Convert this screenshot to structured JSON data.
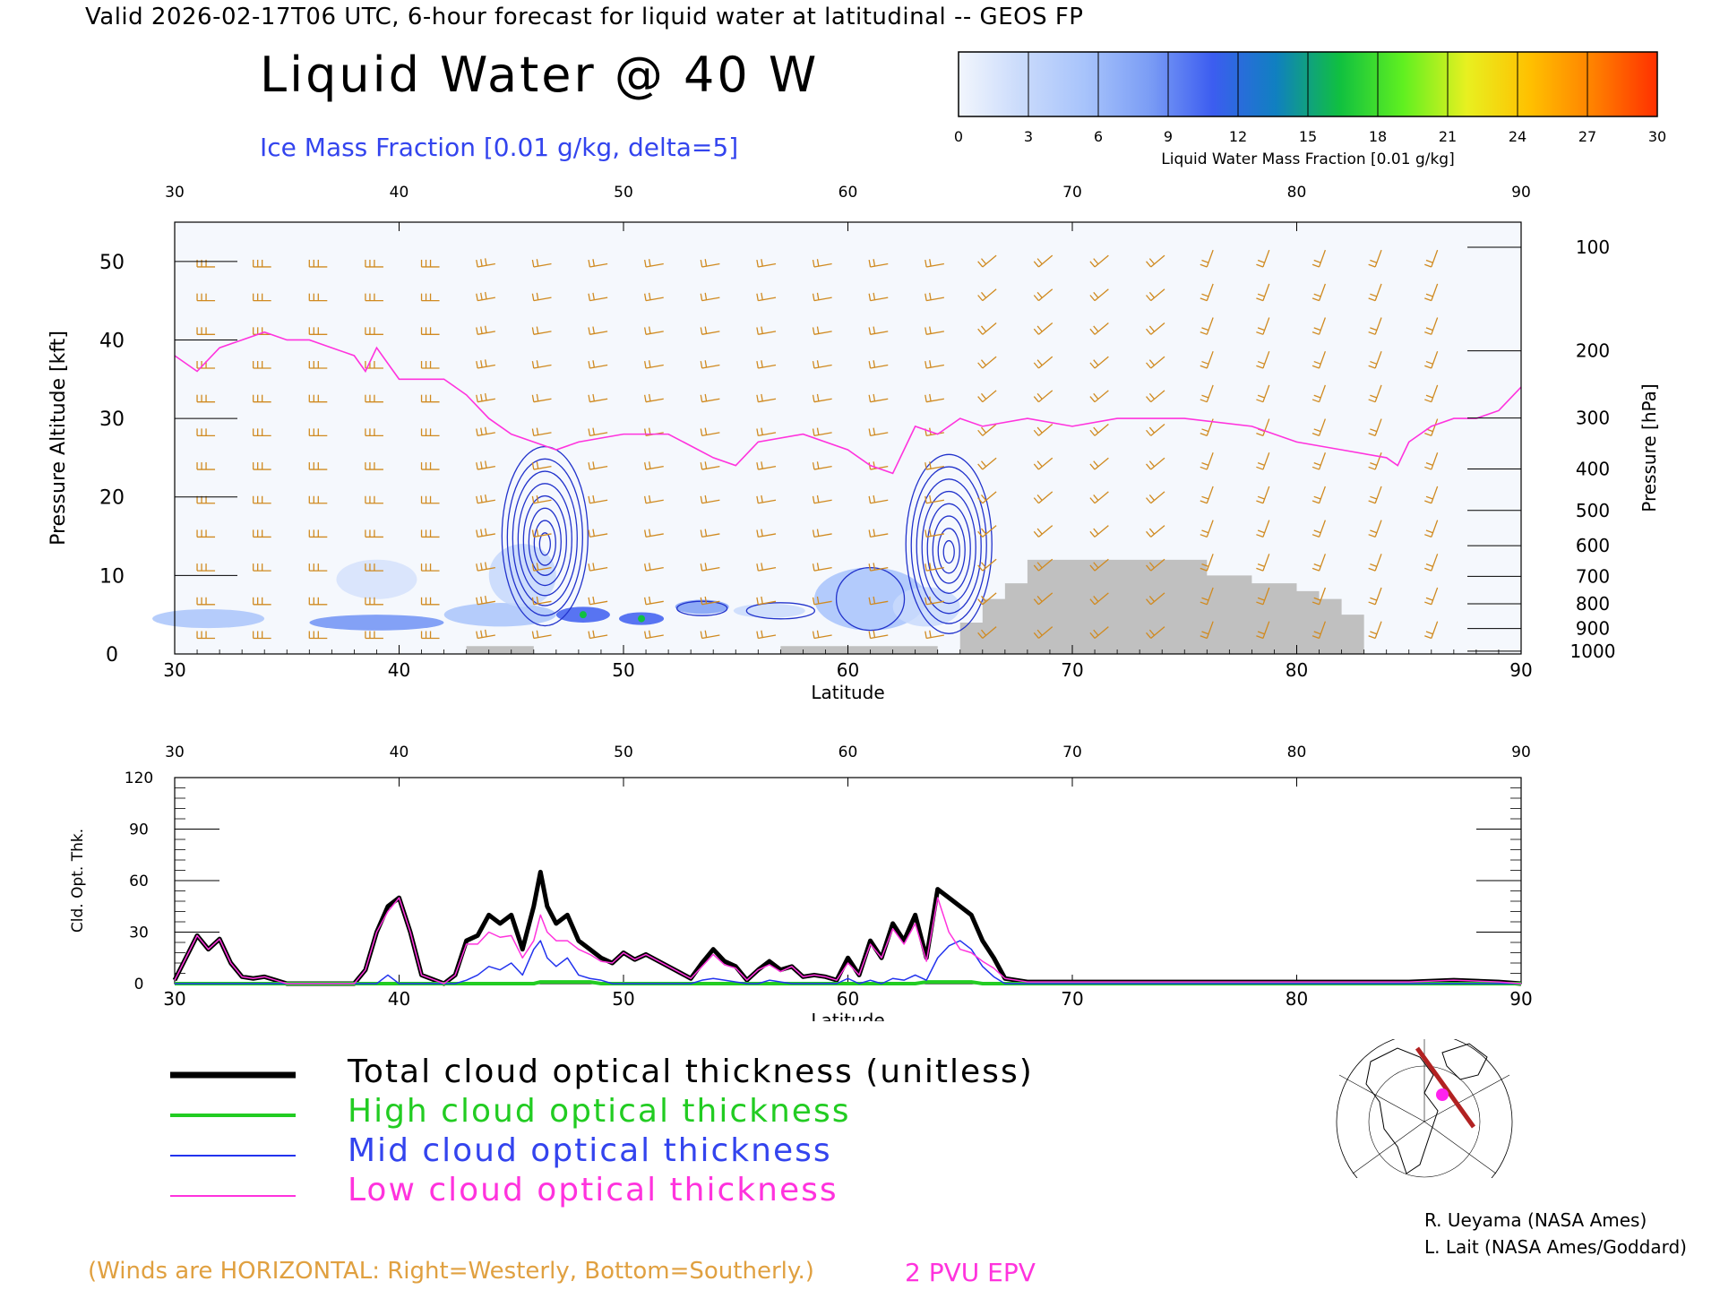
{
  "header": "Valid 2026-02-17T06 UTC, 6-hour forecast for liquid water at latitudinal -- GEOS FP",
  "title": "Liquid Water @ 40 W",
  "subtitle": "Ice Mass Fraction [0.01 g/kg, delta=5]",
  "colorbar": {
    "label": "Liquid Water Mass Fraction [0.01 g/kg]",
    "ticks": [
      "0",
      "3",
      "6",
      "9",
      "12",
      "15",
      "18",
      "21",
      "24",
      "27",
      "30"
    ],
    "colors": [
      "#f2f6fd",
      "#c9dafb",
      "#a7c3fb",
      "#7b9df5",
      "#3c5df0",
      "#1080c0",
      "#10c040",
      "#60f020",
      "#e8f020",
      "#ffc000",
      "#ff8000",
      "#ff3000"
    ]
  },
  "colors": {
    "wind_barb": "#d08a20",
    "epv": "#ff33dd",
    "ice_contour": "#2233cc",
    "ground": "#c0c0c0",
    "total": "#000000",
    "high": "#22cc22",
    "mid": "#2233ee",
    "low": "#ff33dd"
  },
  "top_panel": {
    "x_axis_label": "Latitude",
    "y_left_label": "Pressure Altitude [kft]",
    "y_right_label": "Pressure [hPa]",
    "x_ticks": [
      "30",
      "40",
      "50",
      "60",
      "70",
      "80",
      "90"
    ],
    "y_left_ticks": [
      "0",
      "10",
      "20",
      "30",
      "40",
      "50"
    ],
    "y_right_ticks": [
      "100",
      "200",
      "300",
      "400",
      "500",
      "600",
      "700",
      "800",
      "900",
      "1000"
    ]
  },
  "bottom_panel": {
    "x_axis_label": "Latitude",
    "y_label": "Cld. Opt. Thk.",
    "x_ticks": [
      "30",
      "40",
      "50",
      "60",
      "70",
      "80",
      "90"
    ],
    "y_ticks": [
      "0",
      "30",
      "60",
      "90",
      "120"
    ]
  },
  "legend": {
    "total": "Total cloud optical thickness (unitless)",
    "high": "High cloud optical thickness",
    "mid": "Mid cloud optical thickness",
    "low": "Low cloud optical thickness"
  },
  "credits": [
    "R. Ueyama (NASA Ames)",
    "L. Lait (NASA Ames/Goddard)"
  ],
  "winds_note": "(Winds are HORIZONTAL: Right=Westerly, Bottom=Southerly.)",
  "pvu_label": "2 PVU EPV",
  "chart_data": [
    {
      "type": "heatmap",
      "description_title": "Liquid Water @ 40 W",
      "xlim": [
        30,
        90
      ],
      "ylim_kft": [
        0,
        55
      ],
      "epv_2pvu_kft": {
        "lat": [
          30,
          31,
          32,
          33,
          34,
          35,
          36,
          37,
          38,
          38.5,
          39,
          39.5,
          40,
          41,
          42,
          43,
          44,
          45,
          46,
          47,
          48,
          50,
          52,
          54,
          55,
          56,
          58,
          60,
          61,
          62,
          63,
          64,
          65,
          66,
          68,
          70,
          72,
          75,
          78,
          80,
          82,
          84,
          84.5,
          85,
          86,
          87,
          88,
          89,
          90
        ],
        "alt": [
          38,
          36,
          39,
          40,
          41,
          40,
          40,
          39,
          38,
          36,
          39,
          37,
          35,
          35,
          35,
          33,
          30,
          28,
          27,
          26,
          27,
          28,
          28,
          25,
          24,
          27,
          28,
          26,
          24,
          23,
          29,
          28,
          30,
          29,
          30,
          29,
          30,
          30,
          29,
          27,
          26,
          25,
          24,
          27,
          29,
          30,
          30,
          31,
          34
        ]
      },
      "ice_mass_contours": [
        {
          "lat_center": 46.5,
          "alt_center_kft": 15,
          "max": 40
        },
        {
          "lat_center": 64.5,
          "alt_center_kft": 14,
          "max": 40
        }
      ],
      "ground_kft": {
        "lat": [
          43,
          46,
          46,
          57,
          57,
          64,
          64,
          65,
          65,
          66,
          66,
          67,
          67,
          68,
          68,
          76,
          76,
          78,
          78,
          80,
          80,
          81,
          81,
          82,
          82,
          83,
          83,
          90
        ],
        "alt": [
          1,
          1,
          0,
          0,
          1,
          1,
          0,
          0,
          4,
          4,
          7,
          7,
          9,
          9,
          12,
          12,
          10,
          10,
          9,
          9,
          8,
          8,
          7,
          7,
          5,
          5,
          0,
          0
        ]
      }
    },
    {
      "type": "line",
      "xlabel": "Latitude",
      "ylabel": "Cld. Opt. Thk.",
      "xlim": [
        30,
        90
      ],
      "ylim": [
        0,
        120
      ],
      "x": [
        30,
        30.5,
        31,
        31.5,
        32,
        32.5,
        33,
        33.5,
        34,
        34.5,
        35,
        36,
        37,
        38,
        38.5,
        39,
        39.5,
        40,
        40.5,
        41,
        42,
        42.5,
        43,
        43.5,
        44,
        44.5,
        45,
        45.5,
        46,
        46.3,
        46.6,
        47,
        47.5,
        48,
        48.5,
        49,
        49.5,
        50,
        50.5,
        51,
        52,
        53,
        53.5,
        54,
        54.5,
        55,
        55.5,
        56,
        56.5,
        57,
        57.5,
        58,
        58.5,
        59,
        59.5,
        60,
        60.5,
        61,
        61.5,
        62,
        62.5,
        63,
        63.5,
        64,
        64.5,
        65,
        65.5,
        66,
        66.5,
        67,
        68,
        70,
        75,
        80,
        85,
        87,
        89,
        90
      ],
      "series": [
        {
          "name": "Total cloud optical thickness (unitless)",
          "values": [
            2,
            15,
            28,
            20,
            26,
            12,
            4,
            3,
            4,
            2,
            0,
            0,
            0,
            0,
            8,
            30,
            45,
            50,
            30,
            5,
            0,
            5,
            25,
            28,
            40,
            35,
            40,
            20,
            45,
            65,
            45,
            35,
            40,
            25,
            20,
            15,
            12,
            18,
            14,
            17,
            10,
            3,
            12,
            20,
            13,
            10,
            2,
            8,
            13,
            8,
            10,
            4,
            5,
            4,
            2,
            15,
            5,
            25,
            15,
            35,
            25,
            40,
            15,
            55,
            50,
            45,
            40,
            25,
            15,
            3,
            1,
            1,
            1,
            1,
            1,
            2,
            1,
            0
          ]
        },
        {
          "name": "High cloud optical thickness",
          "values": [
            0,
            0,
            0,
            0,
            0,
            0,
            0,
            0,
            0,
            0,
            0,
            0,
            0,
            0,
            0,
            0,
            0,
            0,
            0,
            0,
            0,
            0,
            0,
            0,
            0,
            0,
            0,
            0,
            0,
            1,
            1,
            1,
            1,
            1,
            1,
            0,
            0,
            0,
            0,
            0,
            0,
            0,
            0,
            0,
            0,
            0,
            0,
            0,
            0,
            0,
            0,
            0,
            0,
            0,
            0,
            0,
            0,
            0,
            0,
            0,
            0,
            0,
            1,
            1,
            1,
            1,
            1,
            0,
            0,
            0,
            0,
            0,
            0,
            0,
            0,
            0,
            0,
            0
          ]
        },
        {
          "name": "Mid cloud optical thickness",
          "values": [
            0,
            0,
            0,
            0,
            0,
            0,
            0,
            0,
            0,
            0,
            0,
            0,
            0,
            0,
            0,
            0,
            5,
            0,
            0,
            0,
            0,
            0,
            2,
            5,
            10,
            8,
            12,
            5,
            20,
            25,
            15,
            10,
            15,
            5,
            3,
            2,
            0,
            0,
            0,
            0,
            0,
            0,
            2,
            3,
            2,
            1,
            0,
            0,
            2,
            1,
            0,
            0,
            0,
            0,
            0,
            3,
            0,
            2,
            0,
            3,
            2,
            5,
            2,
            15,
            22,
            25,
            20,
            10,
            4,
            0,
            0,
            0,
            0,
            0,
            0,
            0,
            0,
            0
          ]
        },
        {
          "name": "Low cloud optical thickness",
          "values": [
            2,
            15,
            28,
            20,
            26,
            12,
            4,
            3,
            4,
            2,
            0,
            0,
            0,
            0,
            8,
            30,
            42,
            50,
            30,
            5,
            0,
            5,
            23,
            23,
            30,
            27,
            28,
            15,
            25,
            40,
            30,
            25,
            25,
            20,
            17,
            13,
            12,
            18,
            14,
            17,
            10,
            3,
            10,
            17,
            11,
            9,
            2,
            8,
            11,
            7,
            10,
            4,
            5,
            4,
            2,
            12,
            5,
            23,
            15,
            32,
            23,
            35,
            13,
            50,
            30,
            20,
            18,
            13,
            9,
            3,
            1,
            1,
            1,
            1,
            1,
            2,
            1,
            0
          ]
        }
      ]
    }
  ]
}
